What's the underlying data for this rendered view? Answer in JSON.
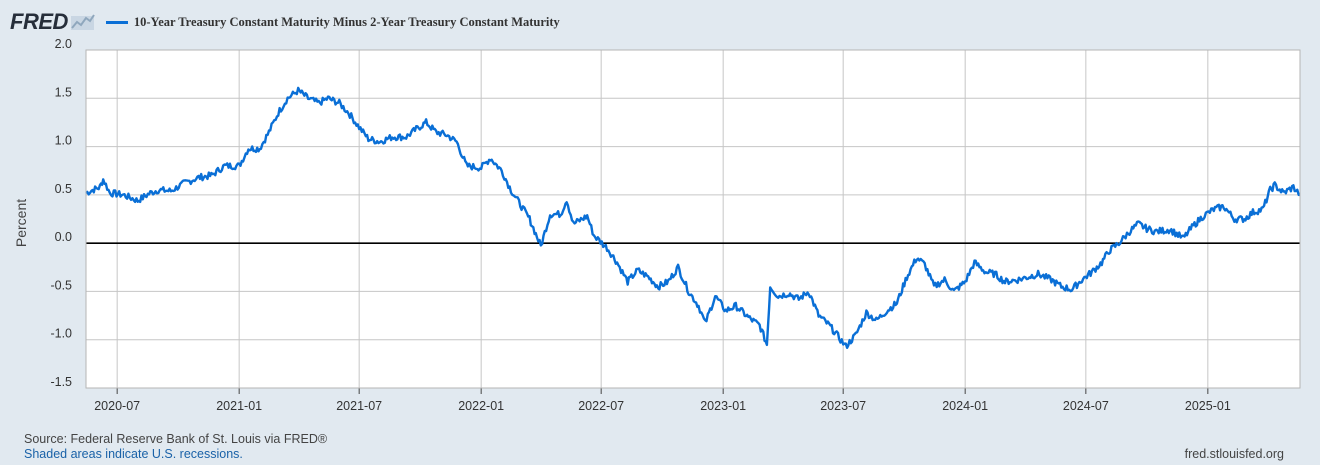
{
  "header": {
    "logo_text": "FRED",
    "legend_label": "10-Year Treasury Constant Maturity Minus 2-Year Treasury Constant Maturity",
    "series_color": "#0a6fd6"
  },
  "footer": {
    "source": "Source: Federal Reserve Bank of St. Louis via FRED®",
    "shaded": "Shaded areas indicate U.S. recessions.",
    "url": "fred.stlouisfed.org"
  },
  "chart_data": {
    "type": "line",
    "title": "",
    "ylabel": "Percent",
    "xlabel": "",
    "ylim": [
      -1.5,
      2.0
    ],
    "xlim": [
      "2020-05-15",
      "2025-05-20"
    ],
    "y_ticks": [
      "2.0",
      "1.5",
      "1.0",
      "0.5",
      "0.0",
      "-0.5",
      "-1.0",
      "-1.5"
    ],
    "x_ticks": [
      {
        "label": "2020-07",
        "date": "2020-07-01"
      },
      {
        "label": "2021-01",
        "date": "2021-01-01"
      },
      {
        "label": "2021-07",
        "date": "2021-07-01"
      },
      {
        "label": "2022-01",
        "date": "2022-01-01"
      },
      {
        "label": "2022-07",
        "date": "2022-07-01"
      },
      {
        "label": "2023-01",
        "date": "2023-01-01"
      },
      {
        "label": "2023-07",
        "date": "2023-07-01"
      },
      {
        "label": "2024-01",
        "date": "2024-01-01"
      },
      {
        "label": "2024-07",
        "date": "2024-07-01"
      },
      {
        "label": "2025-01",
        "date": "2025-01-01"
      }
    ],
    "grid": true,
    "legend": "top-left",
    "zero_line": true,
    "series": [
      {
        "name": "10-Year Treasury Constant Maturity Minus 2-Year Treasury Constant Maturity",
        "color": "#0a6fd6",
        "points": [
          [
            "2020-05-15",
            0.52
          ],
          [
            "2020-05-25",
            0.55
          ],
          [
            "2020-06-05",
            0.58
          ],
          [
            "2020-06-10",
            0.66
          ],
          [
            "2020-06-20",
            0.52
          ],
          [
            "2020-07-10",
            0.5
          ],
          [
            "2020-08-01",
            0.44
          ],
          [
            "2020-08-20",
            0.52
          ],
          [
            "2020-09-01",
            0.55
          ],
          [
            "2020-09-20",
            0.54
          ],
          [
            "2020-10-10",
            0.62
          ],
          [
            "2020-11-01",
            0.68
          ],
          [
            "2020-11-20",
            0.7
          ],
          [
            "2020-12-10",
            0.8
          ],
          [
            "2021-01-01",
            0.8
          ],
          [
            "2021-01-15",
            0.98
          ],
          [
            "2021-02-01",
            0.98
          ],
          [
            "2021-02-15",
            1.15
          ],
          [
            "2021-03-01",
            1.35
          ],
          [
            "2021-03-15",
            1.5
          ],
          [
            "2021-03-31",
            1.58
          ],
          [
            "2021-04-15",
            1.5
          ],
          [
            "2021-05-01",
            1.45
          ],
          [
            "2021-05-15",
            1.5
          ],
          [
            "2021-06-01",
            1.45
          ],
          [
            "2021-06-15",
            1.35
          ],
          [
            "2021-07-01",
            1.2
          ],
          [
            "2021-07-15",
            1.08
          ],
          [
            "2021-08-01",
            1.05
          ],
          [
            "2021-08-20",
            1.1
          ],
          [
            "2021-09-10",
            1.1
          ],
          [
            "2021-09-25",
            1.18
          ],
          [
            "2021-10-10",
            1.25
          ],
          [
            "2021-10-25",
            1.15
          ],
          [
            "2021-11-10",
            1.12
          ],
          [
            "2021-11-25",
            1.05
          ],
          [
            "2021-12-10",
            0.8
          ],
          [
            "2022-01-01",
            0.78
          ],
          [
            "2022-01-15",
            0.88
          ],
          [
            "2022-02-01",
            0.75
          ],
          [
            "2022-02-15",
            0.55
          ],
          [
            "2022-03-01",
            0.4
          ],
          [
            "2022-03-15",
            0.25
          ],
          [
            "2022-04-01",
            -0.03
          ],
          [
            "2022-04-15",
            0.3
          ],
          [
            "2022-05-01",
            0.3
          ],
          [
            "2022-05-10",
            0.45
          ],
          [
            "2022-05-20",
            0.2
          ],
          [
            "2022-06-10",
            0.28
          ],
          [
            "2022-06-20",
            0.08
          ],
          [
            "2022-07-10",
            -0.05
          ],
          [
            "2022-07-25",
            -0.2
          ],
          [
            "2022-08-10",
            -0.4
          ],
          [
            "2022-08-25",
            -0.28
          ],
          [
            "2022-09-10",
            -0.35
          ],
          [
            "2022-09-25",
            -0.45
          ],
          [
            "2022-10-10",
            -0.4
          ],
          [
            "2022-10-25",
            -0.25
          ],
          [
            "2022-11-10",
            -0.5
          ],
          [
            "2022-11-25",
            -0.65
          ],
          [
            "2022-12-05",
            -0.83
          ],
          [
            "2022-12-20",
            -0.55
          ],
          [
            "2023-01-05",
            -0.7
          ],
          [
            "2023-01-20",
            -0.65
          ],
          [
            "2023-02-10",
            -0.78
          ],
          [
            "2023-02-25",
            -0.85
          ],
          [
            "2023-03-08",
            -1.05
          ],
          [
            "2023-03-13",
            -0.45
          ],
          [
            "2023-03-25",
            -0.55
          ],
          [
            "2023-04-10",
            -0.52
          ],
          [
            "2023-04-25",
            -0.58
          ],
          [
            "2023-05-10",
            -0.5
          ],
          [
            "2023-05-25",
            -0.75
          ],
          [
            "2023-06-10",
            -0.85
          ],
          [
            "2023-06-25",
            -0.98
          ],
          [
            "2023-07-05",
            -1.07
          ],
          [
            "2023-07-20",
            -0.95
          ],
          [
            "2023-08-05",
            -0.72
          ],
          [
            "2023-08-20",
            -0.8
          ],
          [
            "2023-09-05",
            -0.7
          ],
          [
            "2023-09-20",
            -0.62
          ],
          [
            "2023-10-05",
            -0.35
          ],
          [
            "2023-10-20",
            -0.15
          ],
          [
            "2023-11-01",
            -0.22
          ],
          [
            "2023-11-15",
            -0.45
          ],
          [
            "2023-12-01",
            -0.38
          ],
          [
            "2023-12-15",
            -0.5
          ],
          [
            "2024-01-01",
            -0.4
          ],
          [
            "2024-01-15",
            -0.2
          ],
          [
            "2024-02-01",
            -0.3
          ],
          [
            "2024-02-15",
            -0.32
          ],
          [
            "2024-03-01",
            -0.4
          ],
          [
            "2024-03-20",
            -0.38
          ],
          [
            "2024-04-05",
            -0.35
          ],
          [
            "2024-04-20",
            -0.32
          ],
          [
            "2024-05-10",
            -0.38
          ],
          [
            "2024-05-25",
            -0.45
          ],
          [
            "2024-06-10",
            -0.48
          ],
          [
            "2024-06-25",
            -0.38
          ],
          [
            "2024-07-10",
            -0.3
          ],
          [
            "2024-07-25",
            -0.2
          ],
          [
            "2024-08-05",
            -0.08
          ],
          [
            "2024-08-20",
            0.0
          ],
          [
            "2024-09-05",
            0.12
          ],
          [
            "2024-09-18",
            0.2
          ],
          [
            "2024-10-01",
            0.15
          ],
          [
            "2024-10-15",
            0.12
          ],
          [
            "2024-11-05",
            0.14
          ],
          [
            "2024-11-25",
            0.05
          ],
          [
            "2024-12-10",
            0.18
          ],
          [
            "2024-12-25",
            0.28
          ],
          [
            "2025-01-10",
            0.35
          ],
          [
            "2025-01-25",
            0.38
          ],
          [
            "2025-02-10",
            0.25
          ],
          [
            "2025-02-25",
            0.25
          ],
          [
            "2025-03-10",
            0.32
          ],
          [
            "2025-03-25",
            0.35
          ],
          [
            "2025-04-05",
            0.55
          ],
          [
            "2025-04-12",
            0.6
          ],
          [
            "2025-04-25",
            0.52
          ],
          [
            "2025-05-10",
            0.58
          ],
          [
            "2025-05-20",
            0.5
          ]
        ]
      }
    ]
  }
}
